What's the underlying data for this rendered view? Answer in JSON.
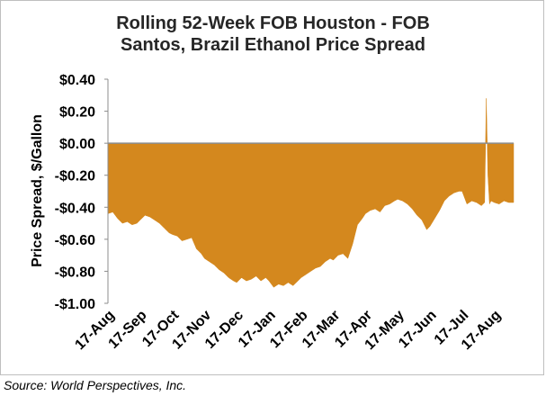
{
  "chart_data": {
    "type": "area",
    "title": "Rolling 52-Week FOB Houston - FOB Santos, Brazil Ethanol Price Spread",
    "title_lines": [
      "Rolling 52-Week FOB Houston - FOB",
      "Santos, Brazil Ethanol Price Spread"
    ],
    "xlabel": "",
    "ylabel": "Price Spread, $/Gallon",
    "ylim": [
      -1.0,
      0.4
    ],
    "yticks": [
      0.4,
      0.2,
      0.0,
      -0.2,
      -0.4,
      -0.6,
      -0.8,
      -1.0
    ],
    "ytick_labels": [
      "$0.40",
      "$0.20",
      "$0.00",
      "-$0.20",
      "-$0.40",
      "-$0.60",
      "-$0.80",
      "-$1.00"
    ],
    "xlim": [
      0,
      12.6
    ],
    "xtick_positions": [
      0,
      1,
      2,
      3,
      4,
      5,
      6,
      7,
      8,
      9,
      10,
      11,
      12
    ],
    "xtick_labels": [
      "17-Aug",
      "17-Sep",
      "17-Oct",
      "17-Nov",
      "17-Dec",
      "17-Jan",
      "17-Feb",
      "17-Mar",
      "17-Apr",
      "17-May",
      "17-Jun",
      "17-Jul",
      "17-Aug"
    ],
    "fill_color": "#d4881e",
    "zero_line_color": "#8c8c8c",
    "series": [
      {
        "name": "FOB Houston - FOB Santos spread",
        "x": [
          0,
          0.15,
          0.3,
          0.45,
          0.6,
          0.75,
          0.9,
          1.0,
          1.15,
          1.3,
          1.45,
          1.6,
          1.75,
          1.9,
          2.0,
          2.15,
          2.3,
          2.45,
          2.6,
          2.75,
          2.9,
          3.0,
          3.15,
          3.3,
          3.45,
          3.6,
          3.75,
          3.9,
          4.0,
          4.15,
          4.3,
          4.45,
          4.6,
          4.75,
          4.9,
          5.0,
          5.15,
          5.3,
          5.45,
          5.6,
          5.75,
          5.9,
          6.0,
          6.15,
          6.3,
          6.45,
          6.6,
          6.75,
          6.9,
          7.0,
          7.15,
          7.3,
          7.45,
          7.6,
          7.75,
          7.9,
          8.0,
          8.15,
          8.3,
          8.45,
          8.6,
          8.75,
          8.9,
          9.0,
          9.15,
          9.3,
          9.45,
          9.6,
          9.75,
          9.9,
          10.0,
          10.15,
          10.3,
          10.45,
          10.6,
          10.75,
          10.9,
          11.0,
          11.15,
          11.3,
          11.45,
          11.6,
          11.7,
          11.75,
          11.8,
          11.85,
          11.9,
          12.0,
          12.15,
          12.3,
          12.45,
          12.6
        ],
        "values": [
          -0.44,
          -0.43,
          -0.47,
          -0.5,
          -0.49,
          -0.51,
          -0.5,
          -0.48,
          -0.45,
          -0.46,
          -0.48,
          -0.5,
          -0.53,
          -0.56,
          -0.57,
          -0.58,
          -0.61,
          -0.6,
          -0.59,
          -0.66,
          -0.69,
          -0.72,
          -0.74,
          -0.76,
          -0.79,
          -0.81,
          -0.84,
          -0.86,
          -0.87,
          -0.84,
          -0.86,
          -0.85,
          -0.83,
          -0.86,
          -0.84,
          -0.86,
          -0.9,
          -0.88,
          -0.89,
          -0.87,
          -0.89,
          -0.86,
          -0.84,
          -0.82,
          -0.8,
          -0.78,
          -0.77,
          -0.74,
          -0.72,
          -0.73,
          -0.7,
          -0.69,
          -0.72,
          -0.63,
          -0.51,
          -0.47,
          -0.44,
          -0.42,
          -0.41,
          -0.43,
          -0.39,
          -0.38,
          -0.36,
          -0.35,
          -0.36,
          -0.38,
          -0.41,
          -0.45,
          -0.48,
          -0.54,
          -0.52,
          -0.47,
          -0.42,
          -0.36,
          -0.33,
          -0.31,
          -0.3,
          -0.3,
          -0.38,
          -0.36,
          -0.37,
          -0.39,
          -0.37,
          0.28,
          -0.2,
          -0.38,
          -0.36,
          -0.37,
          -0.38,
          -0.36,
          -0.37,
          -0.37
        ]
      }
    ]
  },
  "source": "Source: World Perspectives, Inc."
}
